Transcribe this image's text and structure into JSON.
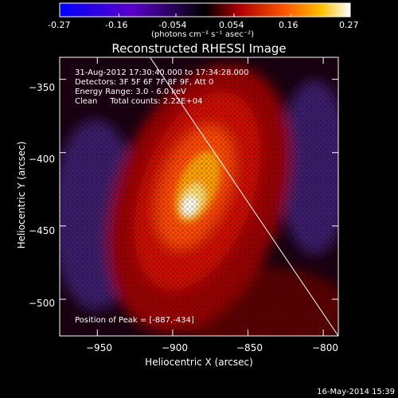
{
  "colorbar": {
    "ticks": [
      "-0.27",
      "-0.16",
      "-0.054",
      "0.054",
      "0.16",
      "0.27"
    ],
    "units": "(photons cm⁻² s⁻¹ asec⁻²)",
    "range": [
      -0.27,
      0.27
    ]
  },
  "chart_data": {
    "type": "heatmap",
    "title": "Reconstructed RHESSI Image",
    "xlabel": "Heliocentric X (arcsec)",
    "ylabel": "Heliocentric Y (arcsec)",
    "xlim": [
      -975,
      -790
    ],
    "ylim": [
      -525,
      -335
    ],
    "xticks": [
      -950,
      -900,
      -850,
      -800
    ],
    "yticks": [
      -350,
      -400,
      -450,
      -500
    ],
    "xtick_labels": [
      "−950",
      "−900",
      "−850",
      "−800"
    ],
    "ytick_labels": [
      "−350",
      "−400",
      "−450",
      "−500"
    ],
    "peak": {
      "x": -887,
      "y": -434,
      "value": 0.27
    },
    "limb_line": [
      [
        -915,
        -335
      ],
      [
        -790,
        -525
      ]
    ],
    "annotations": [
      "31-Aug-2012 17:30:40.000 to 17:34:28.000",
      "Detectors: 3F 5F 6F 7F 8F 9F, Att 0",
      "Energy Range: 3.0 - 6.0 keV",
      "Clean     Total counts: 2.22E+04"
    ],
    "peak_label": "Position of Peak = [-887,-434]"
  },
  "timestamp": "16-May-2014 15:39"
}
